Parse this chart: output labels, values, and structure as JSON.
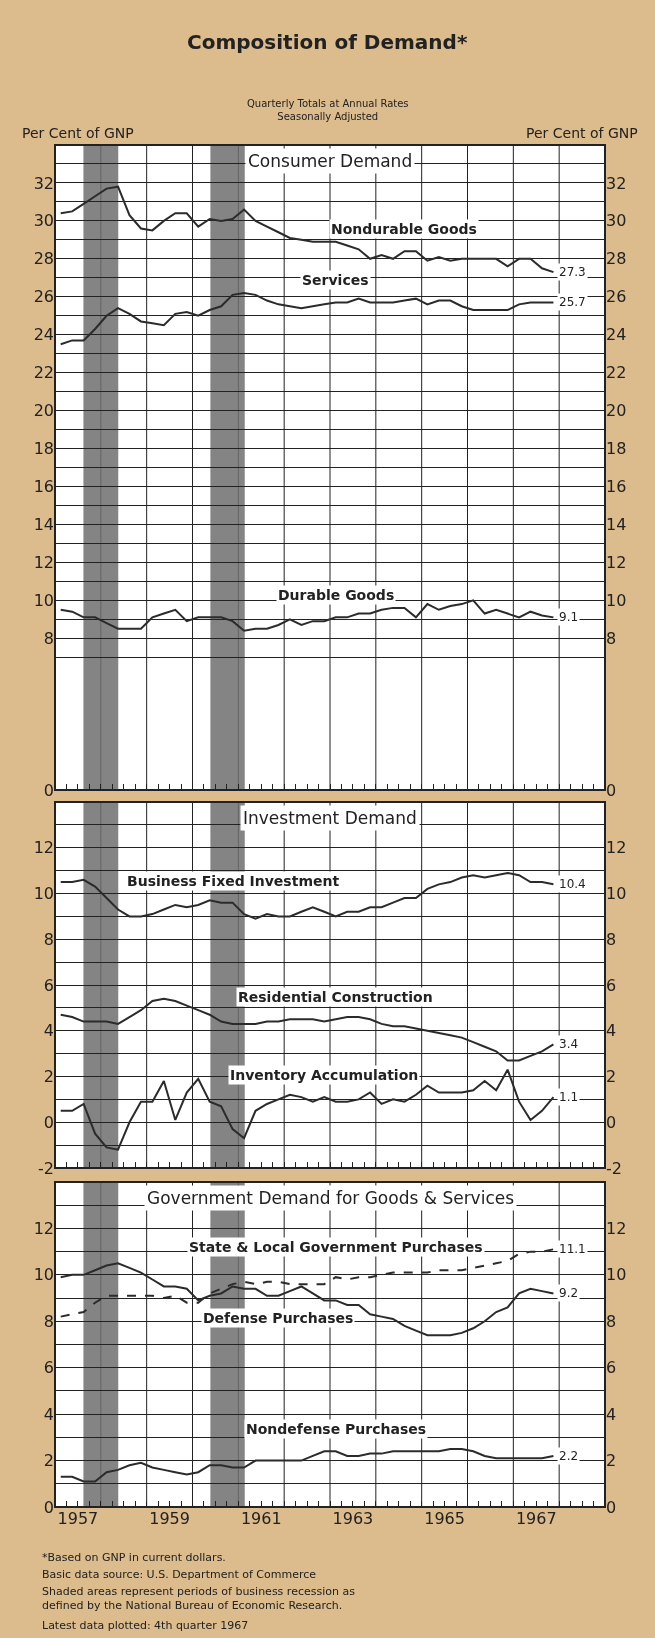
{
  "chart_data": [
    {
      "type": "line",
      "title": "Composition of Demand*",
      "subtitle": "Quarterly Totals at Annual Rates\nSeasonally Adjusted",
      "ylabel": "Per Cent of GNP",
      "y2label": "Per Cent of GNP",
      "annotations": [
        "Consumer Demand"
      ],
      "grid": true,
      "tick_labels": "y",
      "x": [
        1957.125,
        1957.375,
        1957.625,
        1957.875,
        1958.125,
        1958.375,
        1958.625,
        1958.875,
        1959.125,
        1959.375,
        1959.625,
        1959.875,
        1960.125,
        1960.375,
        1960.625,
        1960.875,
        1961.125,
        1961.375,
        1961.625,
        1961.875,
        1962.125,
        1962.375,
        1962.625,
        1962.875,
        1963.125,
        1963.375,
        1963.625,
        1963.875,
        1964.125,
        1964.375,
        1964.625,
        1964.875,
        1965.125,
        1965.375,
        1965.625,
        1965.875,
        1966.125,
        1966.375,
        1966.625,
        1966.875,
        1967.125,
        1967.375,
        1967.625,
        1967.875
      ],
      "xlim": [
        1957,
        1969
      ],
      "xticks": [
        {
          "value": 1957,
          "label": null
        },
        {
          "value": 1958,
          "label": null
        },
        {
          "value": 1959,
          "label": null
        },
        {
          "value": 1960,
          "label": null
        },
        {
          "value": 1961,
          "label": null
        },
        {
          "value": 1962,
          "label": null
        },
        {
          "value": 1963,
          "label": null
        },
        {
          "value": 1964,
          "label": null
        },
        {
          "value": 1965,
          "label": null
        },
        {
          "value": 1966,
          "label": null
        },
        {
          "value": 1967,
          "label": null
        },
        {
          "value": 1968,
          "label": null
        },
        {
          "value": 1969,
          "label": null
        }
      ],
      "ylim": [
        0,
        34
      ],
      "yticks": [
        0,
        {
          "value": 7,
          "label": null
        },
        8,
        {
          "value": 9,
          "label": null
        },
        10,
        {
          "value": 11,
          "label": null
        },
        12,
        {
          "value": 13,
          "label": null
        },
        14,
        {
          "value": 15,
          "label": null
        },
        16,
        {
          "value": 17,
          "label": null
        },
        18,
        {
          "value": 19,
          "label": null
        },
        20,
        {
          "value": 21,
          "label": null
        },
        22,
        {
          "value": 23,
          "label": null
        },
        24,
        {
          "value": 25,
          "label": null
        },
        26,
        {
          "value": 27,
          "label": null
        },
        28,
        {
          "value": 29,
          "label": null
        },
        30,
        {
          "value": 31,
          "label": null
        },
        32,
        {
          "value": 33,
          "label": null
        }
      ],
      "y2lim": [
        0,
        34
      ],
      "y2ticks": [
        0,
        {
          "value": 7,
          "label": null
        },
        8,
        {
          "value": 9,
          "label": null
        },
        10,
        {
          "value": 11,
          "label": null
        },
        12,
        {
          "value": 13,
          "label": null
        },
        14,
        {
          "value": 15,
          "label": null
        },
        16,
        {
          "value": 17,
          "label": null
        },
        18,
        {
          "value": 19,
          "label": null
        },
        20,
        {
          "value": 21,
          "label": null
        },
        22,
        {
          "value": 23,
          "label": null
        },
        24,
        {
          "value": 25,
          "label": null
        },
        26,
        {
          "value": 27,
          "label": null
        },
        28,
        {
          "value": 29,
          "label": null
        },
        30,
        {
          "value": 31,
          "label": null
        },
        32,
        {
          "value": 33,
          "label": null
        }
      ],
      "bands": [
        {
          "axis": "x",
          "from": 1957.62,
          "to": 1958.38,
          "color": "#6e6e6e"
        },
        {
          "axis": "x",
          "from": 1960.39,
          "to": 1961.14,
          "color": "#6e6e6e"
        }
      ],
      "series": [
        {
          "name": "Nondurable Goods",
          "color": "#2b2b2b",
          "values": [
            30.4,
            30.5,
            30.9,
            31.3,
            31.7,
            31.8,
            30.3,
            29.6,
            29.5,
            30.0,
            30.4,
            30.4,
            29.7,
            30.1,
            30.0,
            30.1,
            30.6,
            30.0,
            29.7,
            29.4,
            29.1,
            29.0,
            28.9,
            28.9,
            28.9,
            28.7,
            28.5,
            28.0,
            28.2,
            28.0,
            28.4,
            28.4,
            27.9,
            28.1,
            27.9,
            28.0,
            28.0,
            28.0,
            28.0,
            27.6,
            28.0,
            28.0,
            27.5,
            27.3
          ],
          "value_labels": [
            null,
            null,
            null,
            null,
            null,
            null,
            null,
            null,
            null,
            null,
            null,
            null,
            null,
            null,
            null,
            null,
            null,
            null,
            null,
            null,
            null,
            null,
            null,
            null,
            null,
            null,
            null,
            null,
            null,
            null,
            null,
            null,
            null,
            null,
            null,
            null,
            null,
            null,
            null,
            null,
            null,
            null,
            null,
            "27.3"
          ]
        },
        {
          "name": "Services",
          "color": "#2b2b2b",
          "values": [
            23.5,
            23.7,
            23.7,
            24.3,
            25.0,
            25.4,
            25.1,
            24.7,
            24.6,
            24.5,
            25.1,
            25.2,
            25.0,
            25.3,
            25.5,
            26.1,
            26.2,
            26.1,
            25.8,
            25.6,
            25.5,
            25.4,
            25.5,
            25.6,
            25.7,
            25.7,
            25.9,
            25.7,
            25.7,
            25.7,
            25.8,
            25.9,
            25.6,
            25.8,
            25.8,
            25.5,
            25.3,
            25.3,
            25.3,
            25.3,
            25.6,
            25.7,
            25.7,
            25.7
          ],
          "value_labels": [
            null,
            null,
            null,
            null,
            null,
            null,
            null,
            null,
            null,
            null,
            null,
            null,
            null,
            null,
            null,
            null,
            null,
            null,
            null,
            null,
            null,
            null,
            null,
            null,
            null,
            null,
            null,
            null,
            null,
            null,
            null,
            null,
            null,
            null,
            null,
            null,
            null,
            null,
            null,
            null,
            null,
            null,
            null,
            "25.7"
          ]
        },
        {
          "name": "Durable Goods",
          "color": "#2b2b2b",
          "values": [
            9.5,
            9.4,
            9.1,
            9.1,
            8.8,
            8.5,
            8.5,
            8.5,
            9.1,
            9.3,
            9.5,
            8.9,
            9.1,
            9.1,
            9.1,
            8.9,
            8.4,
            8.5,
            8.5,
            8.7,
            9.0,
            8.7,
            8.9,
            8.9,
            9.1,
            9.1,
            9.3,
            9.3,
            9.5,
            9.6,
            9.6,
            9.1,
            9.8,
            9.5,
            9.7,
            9.8,
            10.0,
            9.3,
            9.5,
            9.3,
            9.1,
            9.4,
            9.2,
            9.1
          ],
          "value_labels": [
            null,
            null,
            null,
            null,
            null,
            null,
            null,
            null,
            null,
            null,
            null,
            null,
            null,
            null,
            null,
            null,
            null,
            null,
            null,
            null,
            null,
            null,
            null,
            null,
            null,
            null,
            null,
            null,
            null,
            null,
            null,
            null,
            null,
            null,
            null,
            null,
            null,
            null,
            null,
            null,
            null,
            null,
            null,
            "9.1"
          ]
        }
      ]
    },
    {
      "type": "line",
      "title": "Investment Demand",
      "grid": true,
      "tick_labels": "y",
      "x": [
        1957.125,
        1957.375,
        1957.625,
        1957.875,
        1958.125,
        1958.375,
        1958.625,
        1958.875,
        1959.125,
        1959.375,
        1959.625,
        1959.875,
        1960.125,
        1960.375,
        1960.625,
        1960.875,
        1961.125,
        1961.375,
        1961.625,
        1961.875,
        1962.125,
        1962.375,
        1962.625,
        1962.875,
        1963.125,
        1963.375,
        1963.625,
        1963.875,
        1964.125,
        1964.375,
        1964.625,
        1964.875,
        1965.125,
        1965.375,
        1965.625,
        1965.875,
        1966.125,
        1966.375,
        1966.625,
        1966.875,
        1967.125,
        1967.375,
        1967.625,
        1967.875
      ],
      "xlim": [
        1957,
        1969
      ],
      "xticks": [
        {
          "value": 1957,
          "label": null
        },
        {
          "value": 1958,
          "label": null
        },
        {
          "value": 1959,
          "label": null
        },
        {
          "value": 1960,
          "label": null
        },
        {
          "value": 1961,
          "label": null
        },
        {
          "value": 1962,
          "label": null
        },
        {
          "value": 1963,
          "label": null
        },
        {
          "value": 1964,
          "label": null
        },
        {
          "value": 1965,
          "label": null
        },
        {
          "value": 1966,
          "label": null
        },
        {
          "value": 1967,
          "label": null
        },
        {
          "value": 1968,
          "label": null
        },
        {
          "value": 1969,
          "label": null
        }
      ],
      "ylim": [
        -2,
        14
      ],
      "yticks": [
        -2,
        {
          "value": -1,
          "label": null
        },
        0,
        {
          "value": 1,
          "label": null
        },
        2,
        {
          "value": 3,
          "label": null
        },
        4,
        {
          "value": 5,
          "label": null
        },
        6,
        {
          "value": 7,
          "label": null
        },
        8,
        {
          "value": 9,
          "label": null
        },
        10,
        {
          "value": 11,
          "label": null
        },
        12,
        {
          "value": 13,
          "label": null
        }
      ],
      "y2lim": [
        -2,
        14
      ],
      "y2ticks": [
        -2,
        {
          "value": -1,
          "label": null
        },
        0,
        {
          "value": 1,
          "label": null
        },
        2,
        {
          "value": 3,
          "label": null
        },
        4,
        {
          "value": 5,
          "label": null
        },
        6,
        {
          "value": 7,
          "label": null
        },
        8,
        {
          "value": 9,
          "label": null
        },
        10,
        {
          "value": 11,
          "label": null
        },
        12,
        {
          "value": 13,
          "label": null
        }
      ],
      "bands": [
        {
          "axis": "x",
          "from": 1957.62,
          "to": 1958.38,
          "color": "#6e6e6e"
        },
        {
          "axis": "x",
          "from": 1960.39,
          "to": 1961.14,
          "color": "#6e6e6e"
        }
      ],
      "series": [
        {
          "name": "Business Fixed Investment",
          "color": "#2b2b2b",
          "values": [
            10.5,
            10.5,
            10.6,
            10.3,
            9.8,
            9.3,
            9.0,
            9.0,
            9.1,
            9.3,
            9.5,
            9.4,
            9.5,
            9.7,
            9.6,
            9.6,
            9.1,
            8.9,
            9.1,
            9.0,
            9.0,
            9.2,
            9.4,
            9.2,
            9.0,
            9.2,
            9.2,
            9.4,
            9.4,
            9.6,
            9.8,
            9.8,
            10.2,
            10.4,
            10.5,
            10.7,
            10.8,
            10.7,
            10.8,
            10.9,
            10.8,
            10.5,
            10.5,
            10.4
          ],
          "value_labels": [
            null,
            null,
            null,
            null,
            null,
            null,
            null,
            null,
            null,
            null,
            null,
            null,
            null,
            null,
            null,
            null,
            null,
            null,
            null,
            null,
            null,
            null,
            null,
            null,
            null,
            null,
            null,
            null,
            null,
            null,
            null,
            null,
            null,
            null,
            null,
            null,
            null,
            null,
            null,
            null,
            null,
            null,
            null,
            "10.4"
          ]
        },
        {
          "name": "Residential Construction",
          "color": "#2b2b2b",
          "values": [
            4.7,
            4.6,
            4.4,
            4.4,
            4.4,
            4.3,
            4.6,
            4.9,
            5.3,
            5.4,
            5.3,
            5.1,
            4.9,
            4.7,
            4.4,
            4.3,
            4.3,
            4.3,
            4.4,
            4.4,
            4.5,
            4.5,
            4.5,
            4.4,
            4.5,
            4.6,
            4.6,
            4.5,
            4.3,
            4.2,
            4.2,
            4.1,
            4.0,
            3.9,
            3.8,
            3.7,
            3.5,
            3.3,
            3.1,
            2.7,
            2.7,
            2.9,
            3.1,
            3.4
          ],
          "value_labels": [
            null,
            null,
            null,
            null,
            null,
            null,
            null,
            null,
            null,
            null,
            null,
            null,
            null,
            null,
            null,
            null,
            null,
            null,
            null,
            null,
            null,
            null,
            null,
            null,
            null,
            null,
            null,
            null,
            null,
            null,
            null,
            null,
            null,
            null,
            null,
            null,
            null,
            null,
            null,
            null,
            null,
            null,
            null,
            "3.4"
          ]
        },
        {
          "name": "Inventory Accumulation",
          "color": "#2b2b2b",
          "values": [
            0.5,
            0.5,
            0.8,
            -0.5,
            -1.1,
            -1.2,
            0.0,
            0.9,
            0.9,
            1.8,
            0.1,
            1.3,
            1.9,
            0.9,
            0.7,
            -0.3,
            -0.7,
            0.5,
            0.8,
            1.0,
            1.2,
            1.1,
            0.9,
            1.1,
            0.9,
            0.9,
            1.0,
            1.3,
            0.8,
            1.0,
            0.9,
            1.2,
            1.6,
            1.3,
            1.3,
            1.3,
            1.4,
            1.8,
            1.4,
            2.3,
            0.9,
            0.1,
            0.5,
            1.1
          ],
          "value_labels": [
            null,
            null,
            null,
            null,
            null,
            null,
            null,
            null,
            null,
            null,
            null,
            null,
            null,
            null,
            null,
            null,
            null,
            null,
            null,
            null,
            null,
            null,
            null,
            null,
            null,
            null,
            null,
            null,
            null,
            null,
            null,
            null,
            null,
            null,
            null,
            null,
            null,
            null,
            null,
            null,
            null,
            null,
            null,
            "1.1"
          ]
        }
      ]
    },
    {
      "type": "line",
      "title": "Government Demand for Goods & Services",
      "grid": true,
      "annotations": [
        "*Based on GNP in current dollars.",
        "Basic data source: U.S. Department of Commerce",
        "Shaded areas represent periods of business recession as defined by the National Bureau of Economic Research.",
        "Latest data plotted: 4th quarter 1967"
      ],
      "x": [
        1957.125,
        1957.375,
        1957.625,
        1957.875,
        1958.125,
        1958.375,
        1958.625,
        1958.875,
        1959.125,
        1959.375,
        1959.625,
        1959.875,
        1960.125,
        1960.375,
        1960.625,
        1960.875,
        1961.125,
        1961.375,
        1961.625,
        1961.875,
        1962.125,
        1962.375,
        1962.625,
        1962.875,
        1963.125,
        1963.375,
        1963.625,
        1963.875,
        1964.125,
        1964.375,
        1964.625,
        1964.875,
        1965.125,
        1965.375,
        1965.625,
        1965.875,
        1966.125,
        1966.375,
        1966.625,
        1966.875,
        1967.125,
        1967.375,
        1967.625,
        1967.875
      ],
      "xlim": [
        1957,
        1969
      ],
      "xticks": [
        {
          "value": 1957,
          "label": null
        },
        {
          "value": 1957.5,
          "label": "1957"
        },
        {
          "value": 1958,
          "label": null
        },
        {
          "value": 1959,
          "label": null
        },
        {
          "value": 1959.5,
          "label": "1959"
        },
        {
          "value": 1960,
          "label": null
        },
        {
          "value": 1961,
          "label": null
        },
        {
          "value": 1961.5,
          "label": "1961"
        },
        {
          "value": 1962,
          "label": null
        },
        {
          "value": 1963,
          "label": null
        },
        {
          "value": 1963.5,
          "label": "1963"
        },
        {
          "value": 1964,
          "label": null
        },
        {
          "value": 1965,
          "label": null
        },
        {
          "value": 1965.5,
          "label": "1965"
        },
        {
          "value": 1966,
          "label": null
        },
        {
          "value": 1967,
          "label": null
        },
        {
          "value": 1967.5,
          "label": "1967"
        },
        {
          "value": 1968,
          "label": null
        },
        {
          "value": 1969,
          "label": null
        }
      ],
      "ylim": [
        0,
        14
      ],
      "yticks": [
        0,
        {
          "value": 1,
          "label": null
        },
        2,
        {
          "value": 3,
          "label": null
        },
        4,
        {
          "value": 5,
          "label": null
        },
        6,
        {
          "value": 7,
          "label": null
        },
        8,
        {
          "value": 9,
          "label": null
        },
        10,
        {
          "value": 11,
          "label": null
        },
        12,
        {
          "value": 13,
          "label": null
        }
      ],
      "y2lim": [
        0,
        14
      ],
      "y2ticks": [
        0,
        {
          "value": 1,
          "label": null
        },
        2,
        {
          "value": 3,
          "label": null
        },
        4,
        {
          "value": 5,
          "label": null
        },
        6,
        {
          "value": 7,
          "label": null
        },
        8,
        {
          "value": 9,
          "label": null
        },
        10,
        {
          "value": 11,
          "label": null
        },
        12,
        {
          "value": 13,
          "label": null
        }
      ],
      "bands": [
        {
          "axis": "x",
          "from": 1957.62,
          "to": 1958.38,
          "color": "#6e6e6e"
        },
        {
          "axis": "x",
          "from": 1960.39,
          "to": 1961.14,
          "color": "#6e6e6e"
        }
      ],
      "series": [
        {
          "name": "State & Local Government Purchases",
          "color": "#2b2b2b",
          "line_style": "dashed",
          "values": [
            8.2,
            8.3,
            8.4,
            8.8,
            9.1,
            9.1,
            9.1,
            9.1,
            9.1,
            9.0,
            9.1,
            8.8,
            8.8,
            9.2,
            9.4,
            9.6,
            9.7,
            9.6,
            9.7,
            9.7,
            9.6,
            9.6,
            9.6,
            9.6,
            9.9,
            9.8,
            9.9,
            9.9,
            10.0,
            10.1,
            10.1,
            10.1,
            10.1,
            10.2,
            10.2,
            10.2,
            10.3,
            10.4,
            10.5,
            10.6,
            10.9,
            11.0,
            11.0,
            11.1
          ],
          "value_labels": [
            null,
            null,
            null,
            null,
            null,
            null,
            null,
            null,
            null,
            null,
            null,
            null,
            null,
            null,
            null,
            null,
            null,
            null,
            null,
            null,
            null,
            null,
            null,
            null,
            null,
            null,
            null,
            null,
            null,
            null,
            null,
            null,
            null,
            null,
            null,
            null,
            null,
            null,
            null,
            null,
            null,
            null,
            null,
            "11.1"
          ]
        },
        {
          "name": "Defense Purchases",
          "color": "#2b2b2b",
          "values": [
            9.9,
            10.0,
            10.0,
            10.2,
            10.4,
            10.5,
            10.3,
            10.1,
            9.8,
            9.5,
            9.5,
            9.4,
            8.9,
            9.1,
            9.2,
            9.5,
            9.4,
            9.4,
            9.1,
            9.1,
            9.3,
            9.5,
            9.2,
            8.9,
            8.9,
            8.7,
            8.7,
            8.3,
            8.2,
            8.1,
            7.8,
            7.6,
            7.4,
            7.4,
            7.4,
            7.5,
            7.7,
            8.0,
            8.4,
            8.6,
            9.2,
            9.4,
            9.3,
            9.2
          ],
          "value_labels": [
            null,
            null,
            null,
            null,
            null,
            null,
            null,
            null,
            null,
            null,
            null,
            null,
            null,
            null,
            null,
            null,
            null,
            null,
            null,
            null,
            null,
            null,
            null,
            null,
            null,
            null,
            null,
            null,
            null,
            null,
            null,
            null,
            null,
            null,
            null,
            null,
            null,
            null,
            null,
            null,
            null,
            null,
            null,
            "9.2"
          ]
        },
        {
          "name": "Nondefense Purchases",
          "color": "#2b2b2b",
          "values": [
            1.3,
            1.3,
            1.1,
            1.1,
            1.5,
            1.6,
            1.8,
            1.9,
            1.7,
            1.6,
            1.5,
            1.4,
            1.5,
            1.8,
            1.8,
            1.7,
            1.7,
            2.0,
            2.0,
            2.0,
            2.0,
            2.0,
            2.2,
            2.4,
            2.4,
            2.2,
            2.2,
            2.3,
            2.3,
            2.4,
            2.4,
            2.4,
            2.4,
            2.4,
            2.5,
            2.5,
            2.4,
            2.2,
            2.1,
            2.1,
            2.1,
            2.1,
            2.1,
            2.2
          ],
          "value_labels": [
            null,
            null,
            null,
            null,
            null,
            null,
            null,
            null,
            null,
            null,
            null,
            null,
            null,
            null,
            null,
            null,
            null,
            null,
            null,
            null,
            null,
            null,
            null,
            null,
            null,
            null,
            null,
            null,
            null,
            null,
            null,
            null,
            null,
            null,
            null,
            null,
            null,
            null,
            null,
            null,
            null,
            null,
            null,
            "2.2"
          ]
        }
      ]
    }
  ]
}
